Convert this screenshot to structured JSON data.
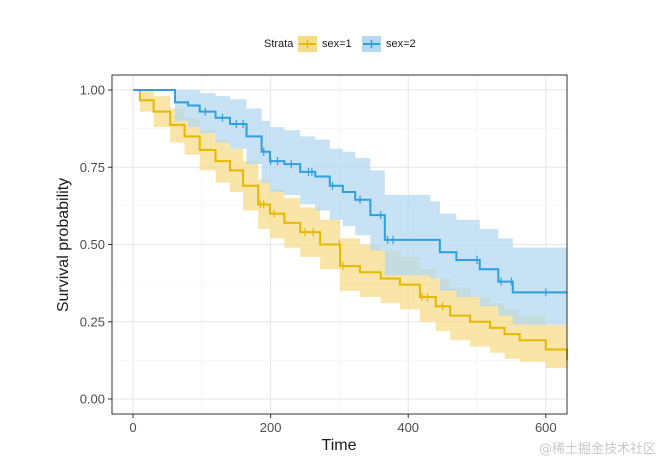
{
  "chart_data": {
    "type": "line",
    "subtype": "kaplan-meier",
    "title": "",
    "xlabel": "Time",
    "ylabel": "Survival probability",
    "xlim": [
      -30,
      631
    ],
    "ylim": [
      -0.05,
      1.05
    ],
    "x_ticks": [
      0,
      200,
      400,
      600
    ],
    "x_tick_labels": [
      "0",
      "200",
      "400",
      "600"
    ],
    "y_ticks": [
      0,
      0.25,
      0.5,
      0.75,
      1.0
    ],
    "y_tick_labels": [
      "0.00",
      "0.25",
      "0.50",
      "0.75",
      "1.00"
    ],
    "grid": true,
    "legend": {
      "title": "Strata",
      "position": "top",
      "entries": [
        "sex=1",
        "sex=2"
      ]
    },
    "series": [
      {
        "name": "sex=1",
        "color": "#E7B800",
        "band_color": "#F5DC8A",
        "time": [
          0,
          10,
          30,
          54,
          75,
          97,
          120,
          141,
          160,
          182,
          199,
          220,
          243,
          272,
          301,
          330,
          360,
          388,
          417,
          440,
          461,
          490,
          519,
          540,
          562,
          600,
          631
        ],
        "surv": [
          1.0,
          0.967,
          0.93,
          0.887,
          0.85,
          0.806,
          0.77,
          0.74,
          0.69,
          0.63,
          0.6,
          0.57,
          0.54,
          0.5,
          0.43,
          0.41,
          0.39,
          0.37,
          0.33,
          0.3,
          0.27,
          0.25,
          0.23,
          0.21,
          0.19,
          0.16,
          0.125
        ],
        "upper": [
          1.0,
          1.0,
          0.98,
          0.94,
          0.91,
          0.87,
          0.84,
          0.81,
          0.77,
          0.71,
          0.68,
          0.65,
          0.62,
          0.58,
          0.52,
          0.5,
          0.48,
          0.46,
          0.42,
          0.39,
          0.36,
          0.33,
          0.31,
          0.29,
          0.27,
          0.24,
          0.21
        ],
        "lower": [
          1.0,
          0.93,
          0.88,
          0.83,
          0.79,
          0.74,
          0.7,
          0.67,
          0.61,
          0.55,
          0.52,
          0.49,
          0.46,
          0.42,
          0.35,
          0.33,
          0.31,
          0.29,
          0.25,
          0.22,
          0.19,
          0.17,
          0.15,
          0.13,
          0.12,
          0.1,
          0.08
        ],
        "censor_times": [
          185,
          190,
          205,
          250,
          262,
          300,
          305,
          420,
          428,
          450
        ]
      },
      {
        "name": "sex=2",
        "color": "#2E9FDF",
        "band_color": "#B4D8F0",
        "time": [
          0,
          61,
          80,
          97,
          120,
          141,
          165,
          187,
          199,
          220,
          243,
          265,
          286,
          305,
          323,
          345,
          366,
          400,
          432,
          446,
          470,
          504,
          531,
          552,
          580,
          631
        ],
        "surv": [
          1.0,
          0.96,
          0.95,
          0.93,
          0.91,
          0.89,
          0.85,
          0.8,
          0.77,
          0.76,
          0.735,
          0.72,
          0.69,
          0.67,
          0.645,
          0.595,
          0.515,
          0.515,
          0.515,
          0.475,
          0.45,
          0.42,
          0.38,
          0.345,
          0.345,
          0.345
        ],
        "upper": [
          1.0,
          1.0,
          1.0,
          0.99,
          0.98,
          0.97,
          0.94,
          0.9,
          0.88,
          0.87,
          0.85,
          0.84,
          0.81,
          0.8,
          0.78,
          0.74,
          0.66,
          0.66,
          0.64,
          0.6,
          0.58,
          0.55,
          0.52,
          0.49,
          0.49,
          0.49
        ],
        "lower": [
          1.0,
          0.9,
          0.88,
          0.86,
          0.83,
          0.81,
          0.76,
          0.7,
          0.67,
          0.66,
          0.63,
          0.61,
          0.58,
          0.56,
          0.53,
          0.48,
          0.4,
          0.4,
          0.39,
          0.35,
          0.33,
          0.3,
          0.27,
          0.24,
          0.24,
          0.24
        ],
        "censor_times": [
          105,
          130,
          150,
          160,
          190,
          200,
          210,
          230,
          255,
          260,
          290,
          330,
          360,
          370,
          378,
          500,
          535,
          550,
          600
        ]
      }
    ]
  },
  "watermark": "@稀土掘金技术社区"
}
